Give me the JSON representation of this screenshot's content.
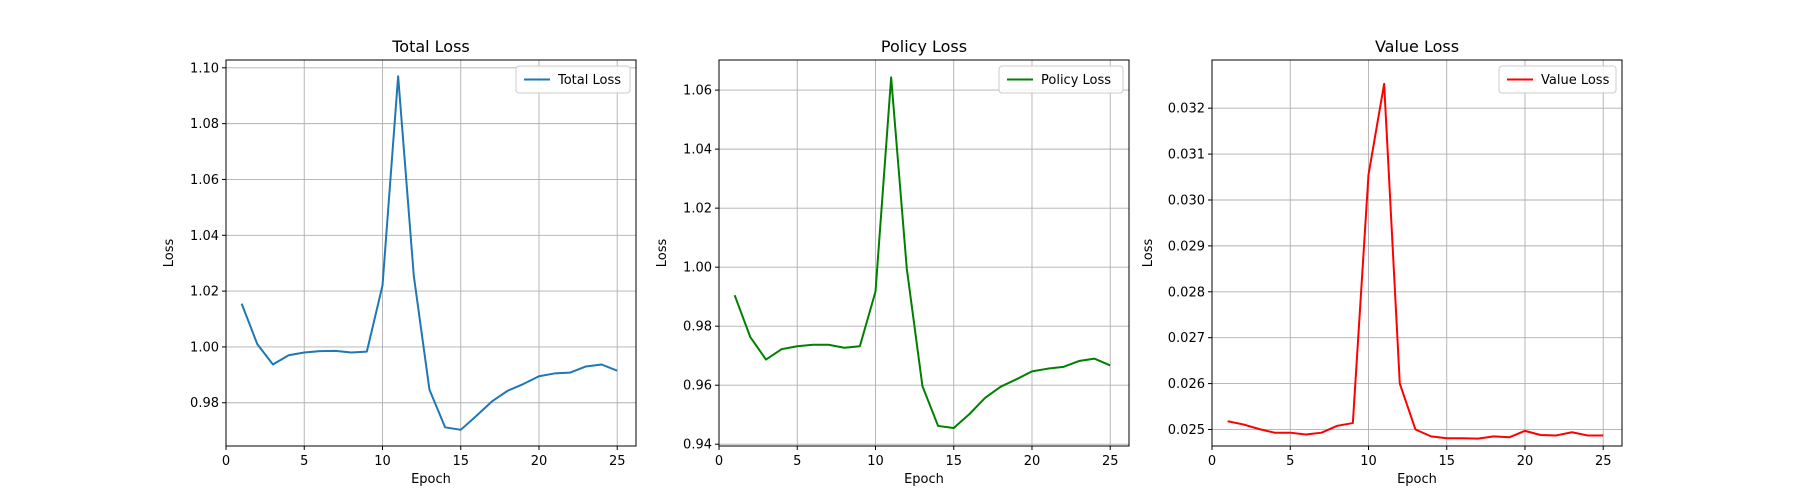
{
  "chart_data": [
    {
      "type": "line",
      "title": "Total Loss",
      "xlabel": "Epoch",
      "ylabel": "Loss",
      "xlim": [
        0,
        26.2
      ],
      "ylim": [
        0.9645,
        1.1028
      ],
      "xticks": [
        0,
        5,
        10,
        15,
        20,
        25
      ],
      "xtick_labels": [
        "0",
        "5",
        "10",
        "15",
        "20",
        "25"
      ],
      "yticks": [
        0.98,
        1.0,
        1.02,
        1.04,
        1.06,
        1.08,
        1.1
      ],
      "ytick_labels": [
        "0.98",
        "1.00",
        "1.02",
        "1.04",
        "1.06",
        "1.08",
        "1.10"
      ],
      "grid": true,
      "legend": "upper-right",
      "x": [
        1,
        2,
        3,
        4,
        5,
        6,
        7,
        8,
        9,
        10,
        11,
        12,
        13,
        14,
        15,
        16,
        17,
        18,
        19,
        20,
        21,
        22,
        23,
        24,
        25
      ],
      "series": [
        {
          "name": "Total Loss",
          "color": "#1f77b4",
          "values": [
            1.0155,
            1.001,
            0.9937,
            0.997,
            0.998,
            0.9985,
            0.9986,
            0.998,
            0.9983,
            1.022,
            1.097,
            1.0255,
            0.9847,
            0.9712,
            0.9703,
            0.9753,
            0.9805,
            0.9843,
            0.9867,
            0.9895,
            0.9905,
            0.9908,
            0.993,
            0.9937,
            0.9915
          ]
        }
      ]
    },
    {
      "type": "line",
      "title": "Policy Loss",
      "xlabel": "Epoch",
      "ylabel": "Loss",
      "xlim": [
        0,
        26.2
      ],
      "ylim": [
        0.9394,
        1.0702
      ],
      "xticks": [
        0,
        5,
        10,
        15,
        20,
        25
      ],
      "xtick_labels": [
        "0",
        "5",
        "10",
        "15",
        "20",
        "25"
      ],
      "yticks": [
        0.94,
        0.96,
        0.98,
        1.0,
        1.02,
        1.04,
        1.06
      ],
      "ytick_labels": [
        "0.94",
        "0.96",
        "0.98",
        "1.00",
        "1.02",
        "1.04",
        "1.06"
      ],
      "grid": true,
      "legend": "upper-right",
      "x": [
        1,
        2,
        3,
        4,
        5,
        6,
        7,
        8,
        9,
        10,
        11,
        12,
        13,
        14,
        15,
        16,
        17,
        18,
        19,
        20,
        21,
        22,
        23,
        24,
        25
      ],
      "series": [
        {
          "name": "Policy Loss",
          "color": "#008000",
          "values": [
            0.9905,
            0.9763,
            0.9687,
            0.9722,
            0.9732,
            0.9737,
            0.9737,
            0.9727,
            0.9732,
            0.9917,
            1.0643,
            0.9995,
            0.9597,
            0.9462,
            0.9455,
            0.9502,
            0.9557,
            0.9595,
            0.962,
            0.9647,
            0.9656,
            0.9662,
            0.9682,
            0.969,
            0.9667
          ]
        }
      ]
    },
    {
      "type": "line",
      "title": "Value Loss",
      "xlabel": "Epoch",
      "ylabel": "Loss",
      "xlim": [
        0,
        26.2
      ],
      "ylim": [
        0.02464,
        0.03305
      ],
      "xticks": [
        0,
        5,
        10,
        15,
        20,
        25
      ],
      "xtick_labels": [
        "0",
        "5",
        "10",
        "15",
        "20",
        "25"
      ],
      "yticks": [
        0.025,
        0.026,
        0.027,
        0.028,
        0.029,
        0.03,
        0.031,
        0.032
      ],
      "ytick_labels": [
        "0.025",
        "0.026",
        "0.027",
        "0.028",
        "0.029",
        "0.030",
        "0.031",
        "0.032"
      ],
      "grid": true,
      "legend": "upper-right",
      "x": [
        1,
        2,
        3,
        4,
        5,
        6,
        7,
        8,
        9,
        10,
        11,
        12,
        13,
        14,
        15,
        16,
        17,
        18,
        19,
        20,
        21,
        22,
        23,
        24,
        25
      ],
      "series": [
        {
          "name": "Value Loss",
          "color": "#ff0000",
          "values": [
            0.02518,
            0.02511,
            0.02501,
            0.02493,
            0.02493,
            0.02489,
            0.02493,
            0.02508,
            0.02514,
            0.03055,
            0.03253,
            0.026,
            0.025,
            0.02485,
            0.02481,
            0.02481,
            0.0248,
            0.02485,
            0.02483,
            0.02497,
            0.02488,
            0.02487,
            0.02494,
            0.02487,
            0.02487
          ]
        }
      ]
    }
  ]
}
